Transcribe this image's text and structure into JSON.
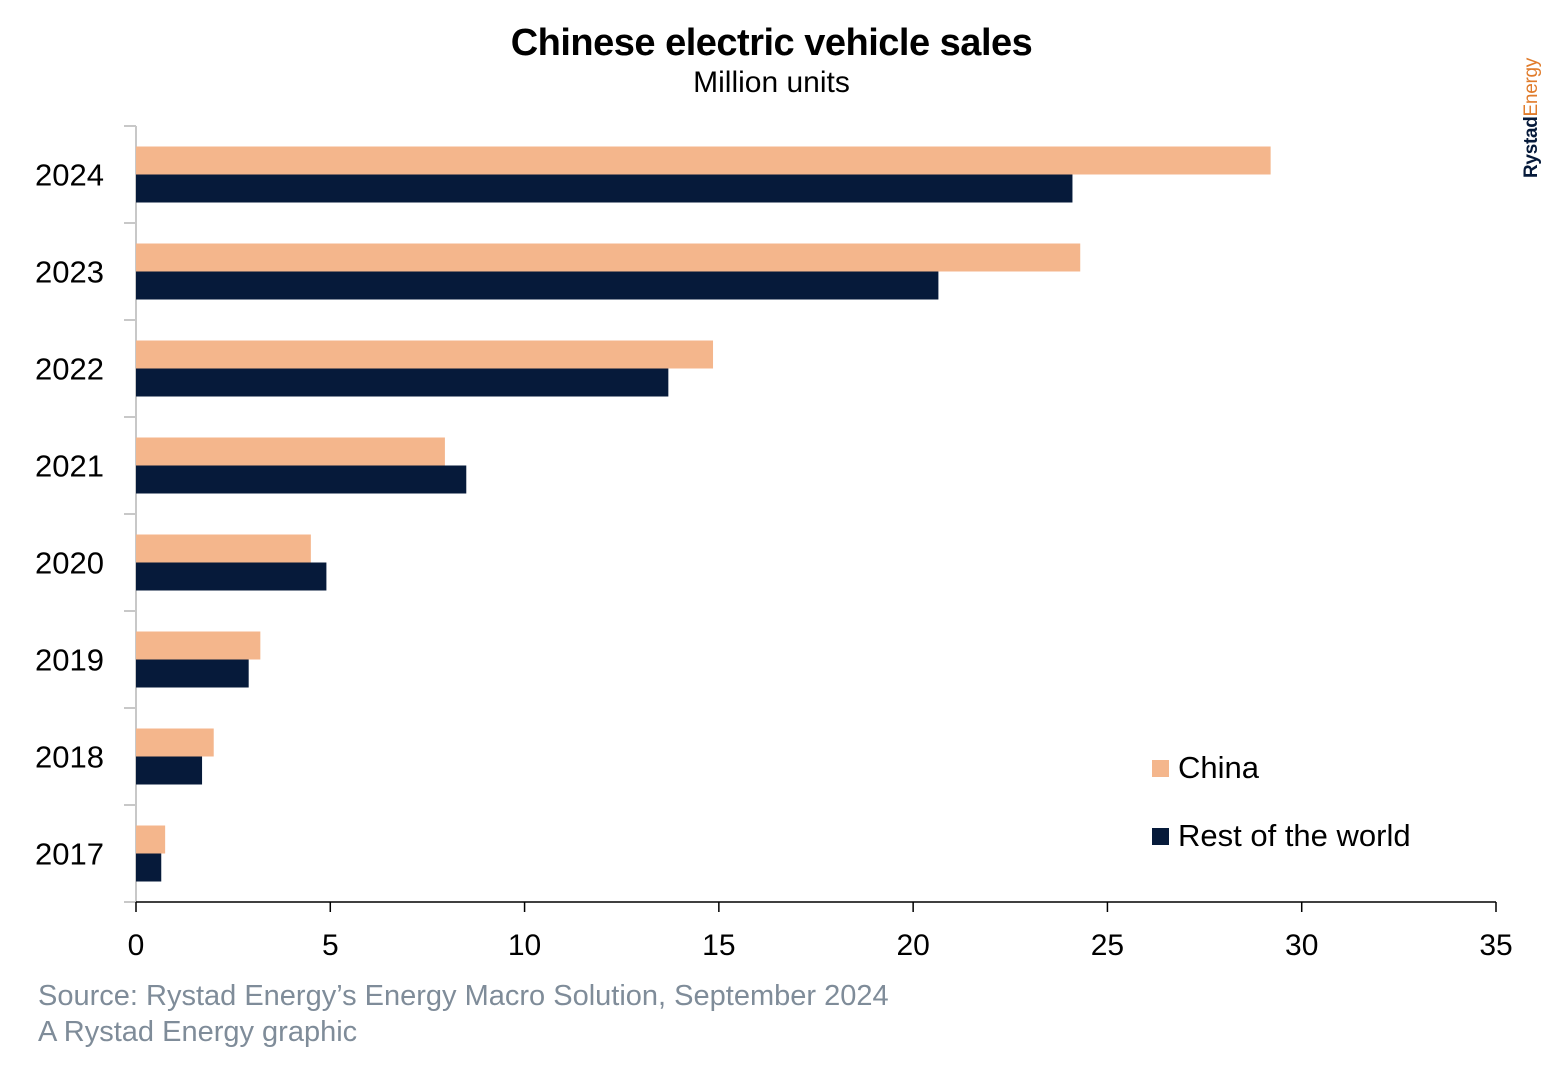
{
  "colors": {
    "china": "#f4b68c",
    "rest_of_world": "#061a3a",
    "axis": "#c8c8c8",
    "footer_text": "#7f8c99",
    "logo_dark": "#061a3a",
    "logo_orange": "#e07b2a"
  },
  "logo": {
    "part1": "Rystad",
    "part2": "Energy"
  },
  "legend": {
    "china": "China",
    "rest_of_world": "Rest of the world"
  },
  "footer": {
    "source": "Source: Rystad Energy’s Energy Macro Solution, September 2024",
    "credit": "A Rystad Energy graphic"
  },
  "chart_data": {
    "type": "bar",
    "orientation": "horizontal",
    "title": "Chinese electric vehicle sales",
    "subtitle": "Million units",
    "categories": [
      "2024",
      "2023",
      "2022",
      "2021",
      "2020",
      "2019",
      "2018",
      "2017"
    ],
    "series": [
      {
        "name": "China",
        "values": [
          29.2,
          24.3,
          14.85,
          7.95,
          4.5,
          3.2,
          2.0,
          0.75
        ]
      },
      {
        "name": "Rest of the world",
        "values": [
          24.1,
          20.65,
          13.7,
          8.5,
          4.9,
          2.9,
          1.7,
          0.65
        ]
      }
    ],
    "xlim": [
      0,
      35
    ],
    "xticks": [
      0,
      5,
      10,
      15,
      20,
      25,
      30,
      35
    ],
    "grid": false,
    "legend_position": "bottom-right"
  }
}
